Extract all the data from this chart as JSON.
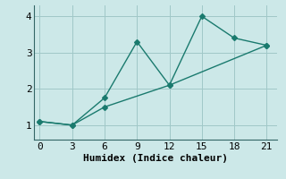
{
  "xlabel": "Humidex (Indice chaleur)",
  "ylabel": "",
  "bg_color": "#cce8e8",
  "line_color": "#1a7a6e",
  "grid_color": "#a0c8c8",
  "line1_x": [
    0,
    3,
    6,
    9,
    12,
    15,
    18,
    21
  ],
  "line1_y": [
    1.1,
    1.0,
    1.75,
    3.3,
    2.1,
    4.0,
    3.4,
    3.2
  ],
  "line2_x": [
    0,
    3,
    6,
    12,
    21
  ],
  "line2_y": [
    1.1,
    1.0,
    1.5,
    2.1,
    3.2
  ],
  "xlim": [
    -0.5,
    22
  ],
  "ylim": [
    0.6,
    4.3
  ],
  "xticks": [
    0,
    3,
    6,
    9,
    12,
    15,
    18,
    21
  ],
  "yticks": [
    1,
    2,
    3,
    4
  ],
  "marker": "D",
  "marker_size": 3,
  "linewidth": 1.0,
  "tick_fontsize": 8,
  "xlabel_fontsize": 8
}
